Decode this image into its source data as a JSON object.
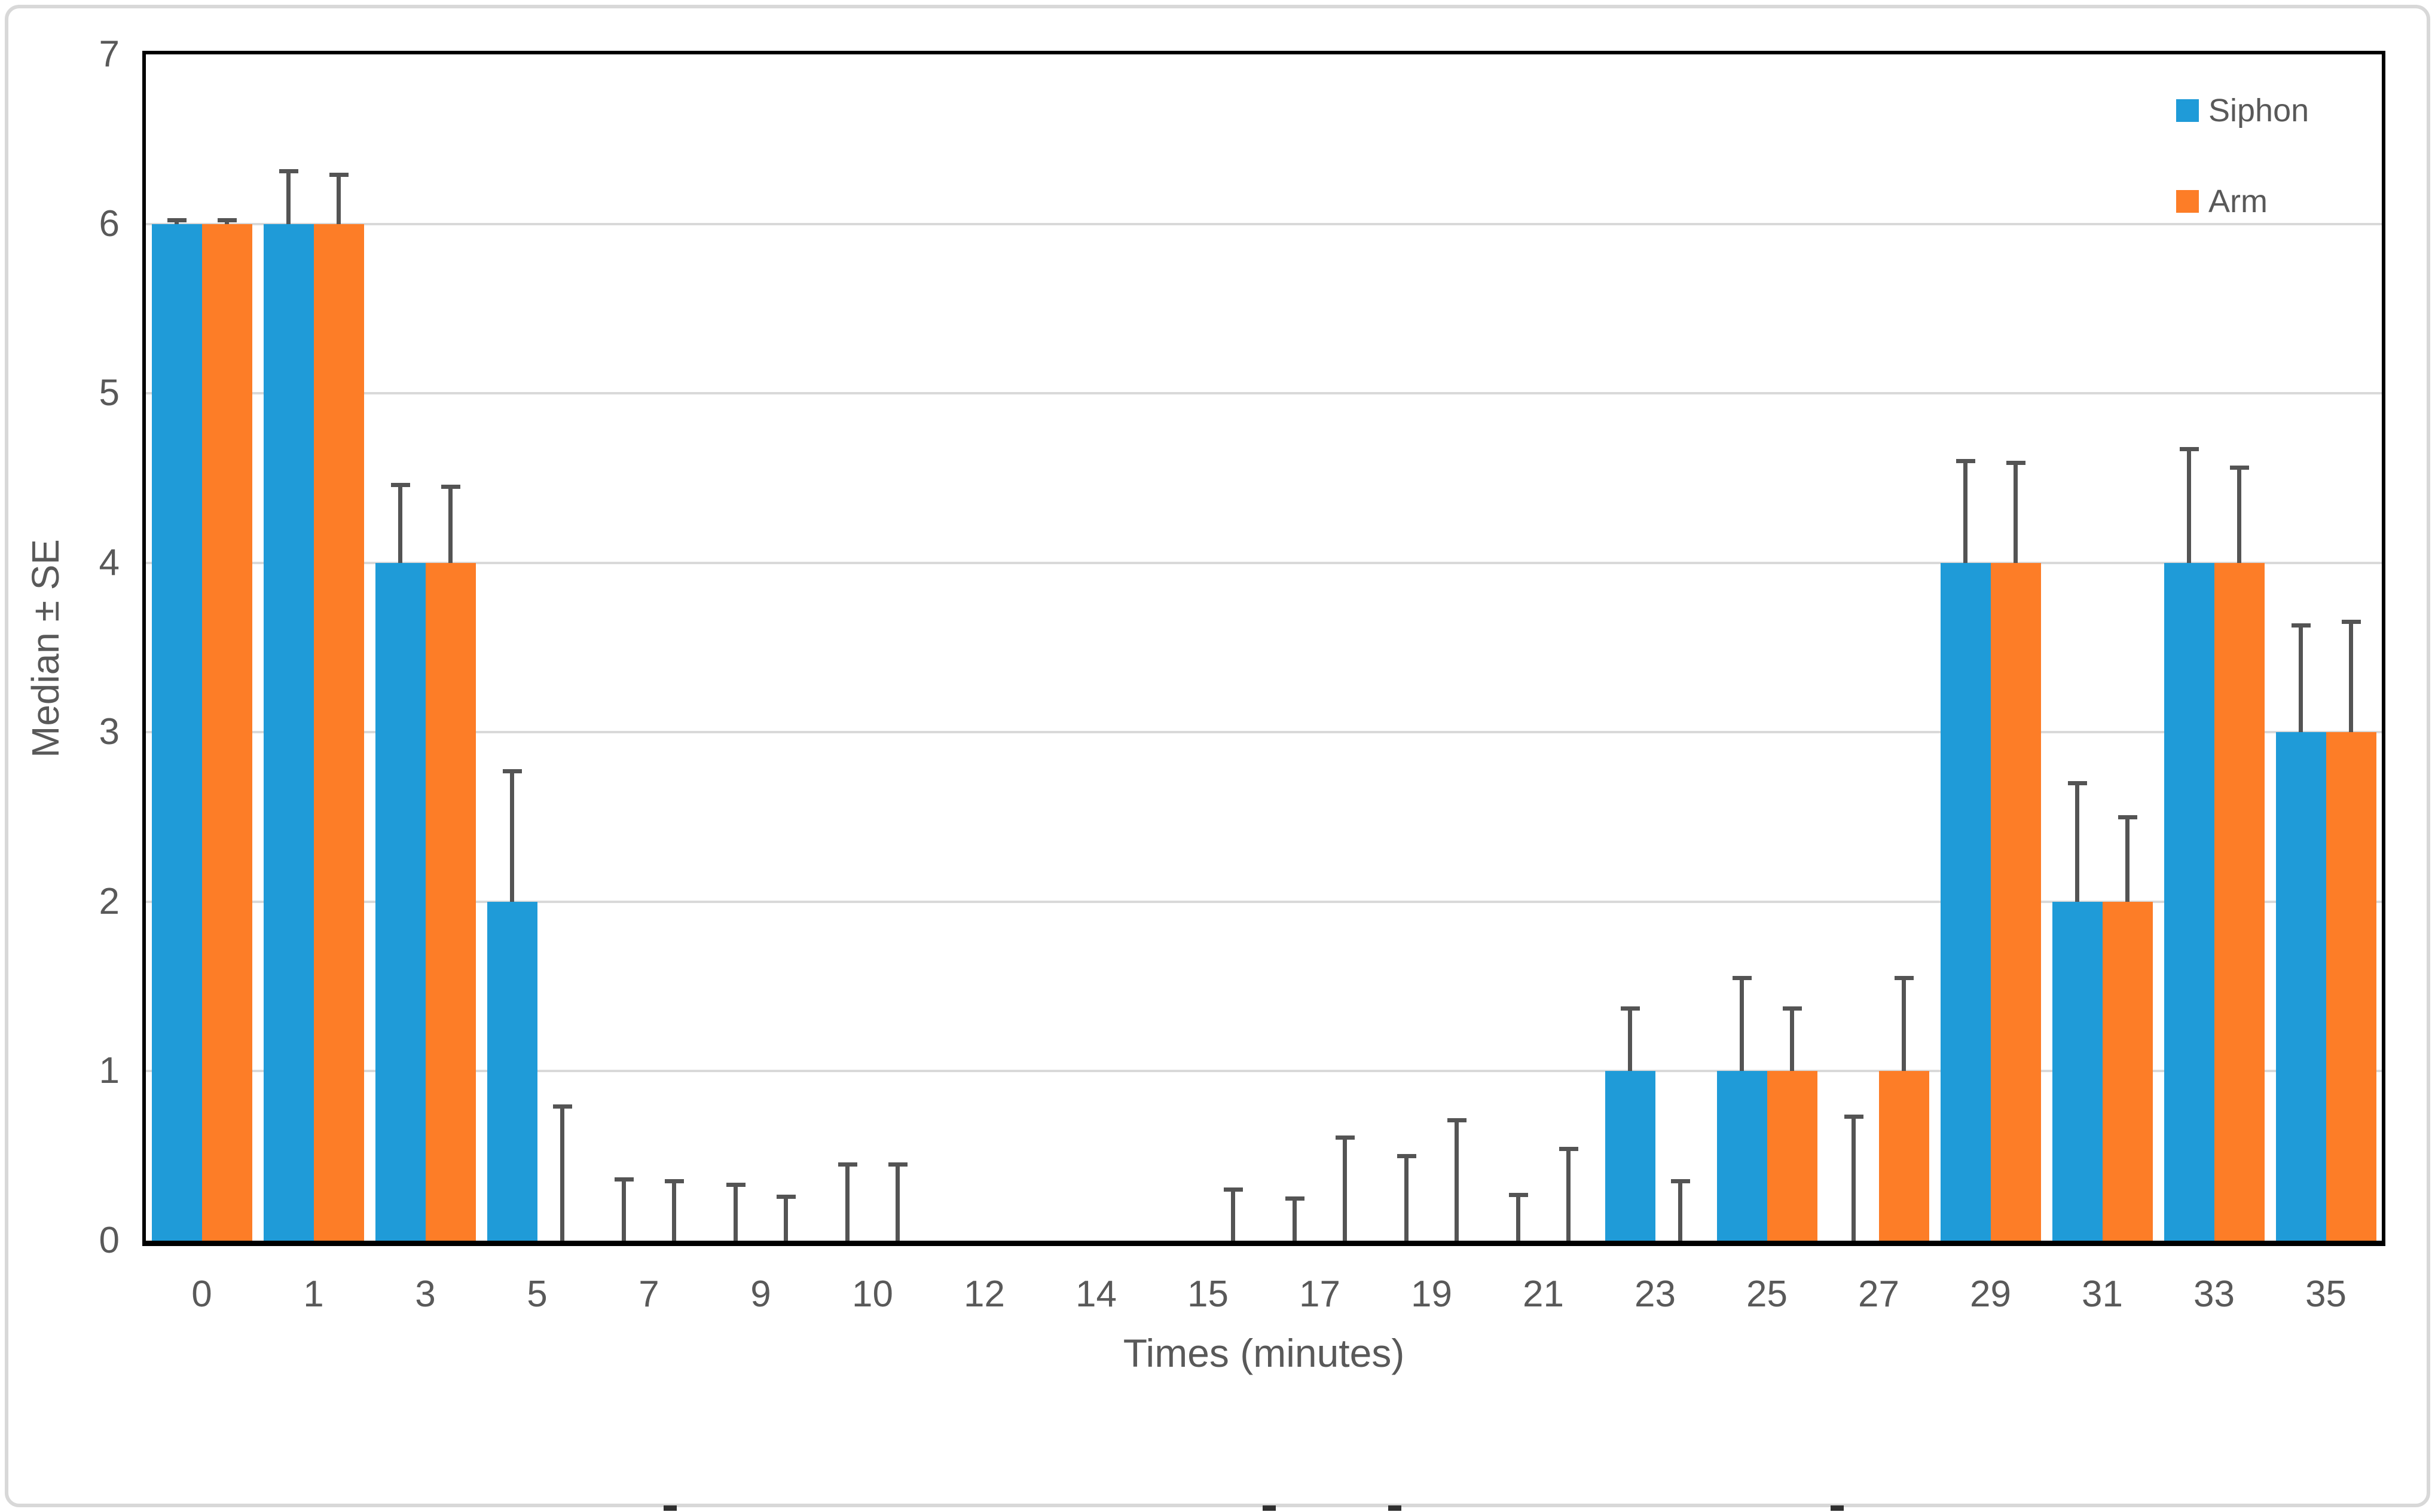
{
  "figure": {
    "background": "#FFFFFF",
    "border_color": "#D8D8D8",
    "bottom_crop_marks_x": [
      1110,
      2112,
      2322,
      3062
    ]
  },
  "chart_data": {
    "type": "bar",
    "title": "",
    "xlabel": "Times (minutes)",
    "ylabel": "Median ± SE",
    "ylim": [
      0,
      7
    ],
    "yticks": [
      0,
      1,
      2,
      3,
      4,
      5,
      6,
      7
    ],
    "grid": "horizontal gridlines at each integer",
    "gridline_color": "#D9D9D9",
    "axis_frame_color": "#000000",
    "error_bar_color": "#545454",
    "text_color": "#595959",
    "legend_position": "top-right inside plot",
    "categories": [
      "0",
      "1",
      "3",
      "5",
      "7",
      "9",
      "10",
      "12",
      "14",
      "15",
      "17",
      "19",
      "21",
      "23",
      "25",
      "27",
      "29",
      "31",
      "33",
      "35"
    ],
    "series": [
      {
        "name": "Siphon",
        "color": "#1F9BD8",
        "values": [
          6,
          6,
          4,
          2,
          0,
          0,
          0,
          0,
          0,
          0,
          0,
          0,
          0,
          1,
          1,
          0,
          4,
          2,
          4,
          3
        ],
        "se": [
          0.02,
          0.31,
          0.46,
          0.77,
          0.36,
          0.33,
          0.45,
          null,
          null,
          null,
          0.25,
          0.5,
          0.27,
          0.37,
          0.55,
          0.73,
          0.6,
          0.7,
          0.67,
          0.63
        ]
      },
      {
        "name": "Arm",
        "color": "#FD7D27",
        "values": [
          6,
          6,
          4,
          0,
          0,
          0,
          0,
          0,
          0,
          0,
          0,
          0,
          0,
          0,
          1,
          1,
          4,
          2,
          4,
          3
        ],
        "se": [
          0.02,
          0.29,
          0.45,
          0.79,
          0.35,
          0.26,
          0.45,
          null,
          null,
          0.3,
          0.61,
          0.71,
          0.54,
          0.35,
          0.37,
          0.55,
          0.59,
          0.5,
          0.56,
          0.65
        ]
      }
    ],
    "se_note": "se = upper standard-error whisker length shown above each bar; null = no error bar drawn"
  }
}
